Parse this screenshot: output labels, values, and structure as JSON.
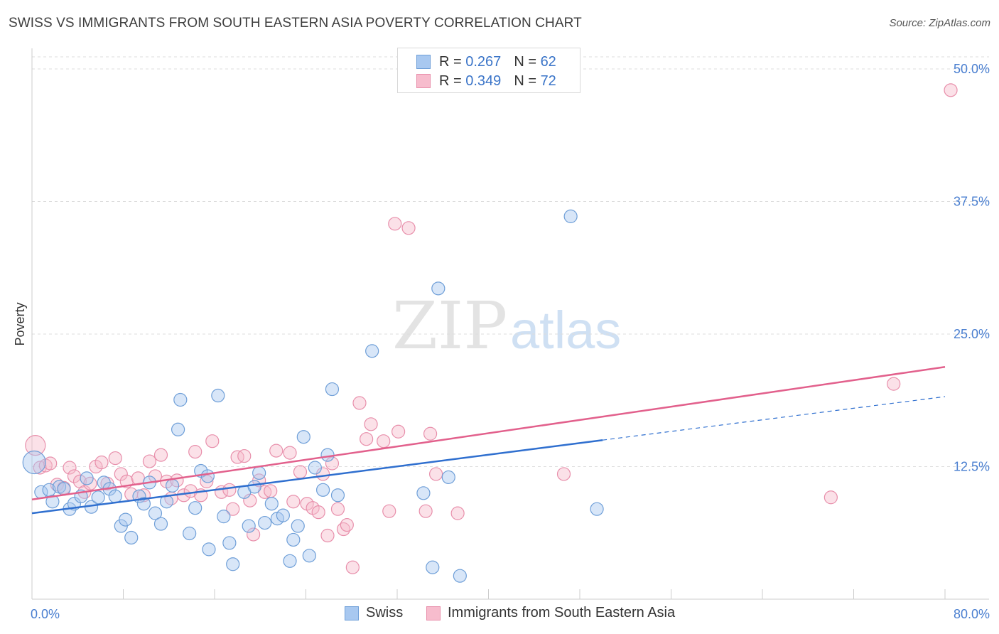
{
  "header": {
    "title": "SWISS VS IMMIGRANTS FROM SOUTH EASTERN ASIA POVERTY CORRELATION CHART",
    "source": "Source: ZipAtlas.com"
  },
  "legend": {
    "swiss": {
      "r_label": "R =",
      "r_value": "0.267",
      "n_label": "N =",
      "n_value": "62"
    },
    "immigrants": {
      "r_label": "R =",
      "r_value": "0.349",
      "n_label": "N =",
      "n_value": "72"
    }
  },
  "bottom_legend": {
    "swiss": "Swiss",
    "immigrants": "Immigrants from South Eastern Asia"
  },
  "watermark": {
    "zip": "ZIP",
    "atlas": "atlas"
  },
  "colors": {
    "swiss_fill": "#a8c8f0",
    "swiss_stroke": "#6f9fd8",
    "swiss_line": "#2f6fcf",
    "imm_fill": "#f7bccd",
    "imm_stroke": "#e88fab",
    "imm_line": "#e2608c",
    "grid": "#dddddd",
    "axis_label": "#4a7fd0"
  },
  "chart_data": {
    "type": "scatter",
    "title": "SWISS VS IMMIGRANTS FROM SOUTH EASTERN ASIA POVERTY CORRELATION CHART",
    "xlabel": "",
    "ylabel": "Poverty",
    "xlim": [
      0,
      80
    ],
    "ylim": [
      0,
      50
    ],
    "y_ticks": [
      12.5,
      25.0,
      37.5,
      50.0
    ],
    "y_tick_labels": [
      "12.5%",
      "25.0%",
      "37.5%",
      "50.0%"
    ],
    "x_tick_labels": [
      "0.0%",
      "80.0%"
    ],
    "series": [
      {
        "name": "Swiss",
        "r": 0.267,
        "n": 62,
        "trend": {
          "x0": 0,
          "y0": 8.1,
          "x1": 50,
          "y1": 15.0,
          "dashed_to_x": 80,
          "dashed_to_y": 19.1
        },
        "points": [
          [
            0.2,
            12.9
          ],
          [
            0.8,
            10.1
          ],
          [
            1.5,
            10.3
          ],
          [
            1.8,
            9.2
          ],
          [
            2.4,
            10.6
          ],
          [
            2.8,
            10.4
          ],
          [
            3.3,
            8.5
          ],
          [
            3.7,
            9.0
          ],
          [
            4.3,
            9.7
          ],
          [
            4.8,
            11.4
          ],
          [
            5.2,
            8.7
          ],
          [
            5.8,
            9.6
          ],
          [
            6.3,
            11.0
          ],
          [
            6.8,
            10.4
          ],
          [
            7.3,
            9.7
          ],
          [
            7.8,
            6.9
          ],
          [
            8.2,
            7.5
          ],
          [
            8.7,
            5.8
          ],
          [
            9.4,
            9.7
          ],
          [
            9.8,
            9.0
          ],
          [
            10.3,
            11.0
          ],
          [
            10.8,
            8.1
          ],
          [
            11.3,
            7.1
          ],
          [
            11.8,
            9.2
          ],
          [
            12.3,
            10.7
          ],
          [
            12.8,
            16.0
          ],
          [
            13.0,
            18.8
          ],
          [
            13.8,
            6.2
          ],
          [
            14.3,
            8.6
          ],
          [
            14.8,
            12.1
          ],
          [
            15.4,
            11.6
          ],
          [
            15.5,
            4.7
          ],
          [
            16.3,
            19.2
          ],
          [
            16.8,
            7.8
          ],
          [
            17.3,
            5.3
          ],
          [
            17.6,
            3.3
          ],
          [
            18.6,
            10.1
          ],
          [
            19.0,
            6.9
          ],
          [
            19.5,
            10.6
          ],
          [
            19.9,
            11.9
          ],
          [
            20.4,
            7.2
          ],
          [
            21.0,
            9.0
          ],
          [
            21.5,
            7.6
          ],
          [
            22.0,
            7.9
          ],
          [
            22.6,
            3.6
          ],
          [
            22.9,
            5.6
          ],
          [
            23.3,
            6.9
          ],
          [
            23.8,
            15.3
          ],
          [
            24.3,
            4.1
          ],
          [
            24.8,
            12.4
          ],
          [
            25.5,
            10.3
          ],
          [
            25.9,
            13.6
          ],
          [
            26.3,
            19.8
          ],
          [
            26.8,
            9.8
          ],
          [
            29.8,
            23.4
          ],
          [
            34.3,
            10.0
          ],
          [
            35.1,
            3.0
          ],
          [
            35.6,
            29.3
          ],
          [
            36.5,
            11.5
          ],
          [
            37.5,
            2.2
          ],
          [
            47.2,
            36.1
          ],
          [
            49.5,
            8.5
          ]
        ]
      },
      {
        "name": "Immigrants from South Eastern Asia",
        "r": 0.349,
        "n": 72,
        "trend": {
          "x0": 0,
          "y0": 9.4,
          "x1": 80,
          "y1": 21.9
        },
        "points": [
          [
            0.3,
            14.5
          ],
          [
            0.7,
            12.4
          ],
          [
            1.2,
            12.6
          ],
          [
            1.6,
            12.8
          ],
          [
            2.2,
            10.8
          ],
          [
            2.8,
            10.5
          ],
          [
            3.3,
            12.4
          ],
          [
            3.7,
            11.6
          ],
          [
            4.2,
            11.1
          ],
          [
            4.6,
            10.1
          ],
          [
            5.1,
            10.9
          ],
          [
            5.6,
            12.5
          ],
          [
            6.1,
            12.9
          ],
          [
            6.6,
            10.9
          ],
          [
            7.3,
            13.3
          ],
          [
            7.8,
            11.8
          ],
          [
            8.3,
            11.1
          ],
          [
            8.7,
            9.9
          ],
          [
            9.3,
            11.4
          ],
          [
            9.8,
            9.8
          ],
          [
            10.3,
            13.0
          ],
          [
            10.8,
            11.6
          ],
          [
            11.3,
            13.6
          ],
          [
            11.8,
            11.1
          ],
          [
            12.2,
            9.5
          ],
          [
            12.7,
            11.2
          ],
          [
            13.3,
            9.8
          ],
          [
            13.9,
            10.2
          ],
          [
            14.3,
            13.9
          ],
          [
            14.8,
            9.8
          ],
          [
            15.3,
            11.1
          ],
          [
            15.8,
            14.9
          ],
          [
            16.6,
            10.1
          ],
          [
            17.3,
            10.3
          ],
          [
            17.6,
            8.5
          ],
          [
            18.0,
            13.4
          ],
          [
            18.6,
            13.5
          ],
          [
            19.1,
            9.3
          ],
          [
            19.4,
            6.1
          ],
          [
            19.9,
            11.2
          ],
          [
            20.4,
            10.1
          ],
          [
            20.9,
            10.2
          ],
          [
            21.4,
            14.0
          ],
          [
            22.6,
            13.8
          ],
          [
            22.9,
            9.2
          ],
          [
            23.5,
            12.0
          ],
          [
            24.1,
            9.0
          ],
          [
            24.6,
            8.6
          ],
          [
            25.1,
            8.2
          ],
          [
            25.5,
            11.8
          ],
          [
            25.9,
            6.0
          ],
          [
            26.3,
            12.8
          ],
          [
            26.8,
            8.5
          ],
          [
            27.3,
            6.6
          ],
          [
            27.6,
            7.0
          ],
          [
            28.1,
            3.0
          ],
          [
            28.7,
            18.5
          ],
          [
            29.3,
            15.1
          ],
          [
            29.7,
            16.5
          ],
          [
            30.8,
            14.9
          ],
          [
            31.3,
            8.3
          ],
          [
            31.8,
            35.4
          ],
          [
            32.1,
            15.8
          ],
          [
            33.0,
            35.0
          ],
          [
            34.5,
            8.3
          ],
          [
            34.9,
            15.6
          ],
          [
            35.4,
            11.8
          ],
          [
            37.3,
            8.1
          ],
          [
            46.6,
            11.8
          ],
          [
            70.0,
            9.6
          ],
          [
            75.5,
            20.3
          ],
          [
            80.5,
            48.0
          ]
        ]
      }
    ]
  }
}
